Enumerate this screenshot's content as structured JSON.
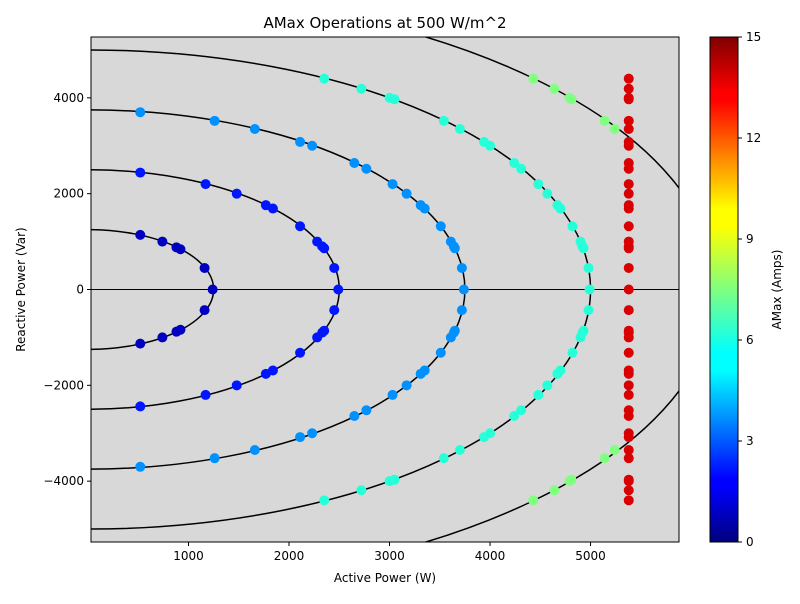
{
  "chart_data": {
    "type": "scatter",
    "title": "AMax Operations at 500 W/m^2",
    "xlabel": "Active Power (W)",
    "ylabel": "Reactive Power (Var)",
    "xlim": [
      30,
      5880
    ],
    "ylim": [
      -5270,
      5270
    ],
    "xticks": [
      1000,
      2000,
      3000,
      4000,
      5000
    ],
    "yticks": [
      -4000,
      -2000,
      0,
      2000,
      4000
    ],
    "xtick_labels": [
      "1000",
      "2000",
      "3000",
      "4000",
      "5000"
    ],
    "ytick_labels": [
      "−4000",
      "−2000",
      "0",
      "2000",
      "4000"
    ],
    "background": "#d8d8d8",
    "grid": false,
    "legend": "none",
    "colorbar": {
      "label": "AMax (Amps)",
      "min": 0,
      "max": 15,
      "ticks": [
        0,
        3,
        6,
        9,
        12,
        15
      ],
      "tick_labels": [
        "0",
        "3",
        "6",
        "9",
        "12",
        "15"
      ],
      "colormap": "jet"
    },
    "circles": [
      {
        "radius": 1250
      },
      {
        "radius": 2500
      },
      {
        "radius": 3750
      },
      {
        "radius": 5000
      },
      {
        "radius": 6250
      }
    ],
    "hline": 0,
    "vertical_line_x": 5380,
    "vertical_line_color": 13.7,
    "points": [
      {
        "x": 520,
        "y": 1140,
        "c": 1.0
      },
      {
        "x": 520,
        "y": -1130,
        "c": 1.0
      },
      {
        "x": 740,
        "y": 1000,
        "c": 1.0
      },
      {
        "x": 740,
        "y": -1000,
        "c": 1.0
      },
      {
        "x": 880,
        "y": 880,
        "c": 1.0
      },
      {
        "x": 880,
        "y": -880,
        "c": 1.0
      },
      {
        "x": 920,
        "y": 840,
        "c": 1.0
      },
      {
        "x": 920,
        "y": -840,
        "c": 1.0
      },
      {
        "x": 1160,
        "y": 450,
        "c": 1.0
      },
      {
        "x": 1160,
        "y": -430,
        "c": 1.0
      },
      {
        "x": 1240,
        "y": 0,
        "c": 1.0
      },
      {
        "x": 520,
        "y": 2440,
        "c": 2.2
      },
      {
        "x": 520,
        "y": -2440,
        "c": 2.2
      },
      {
        "x": 1170,
        "y": 2200,
        "c": 2.2
      },
      {
        "x": 1170,
        "y": -2200,
        "c": 2.2
      },
      {
        "x": 1480,
        "y": 2000,
        "c": 2.2
      },
      {
        "x": 1480,
        "y": -2000,
        "c": 2.2
      },
      {
        "x": 1770,
        "y": 1760,
        "c": 2.2
      },
      {
        "x": 1770,
        "y": -1760,
        "c": 2.2
      },
      {
        "x": 1840,
        "y": 1690,
        "c": 2.2
      },
      {
        "x": 1840,
        "y": -1690,
        "c": 2.2
      },
      {
        "x": 2110,
        "y": 1320,
        "c": 2.2
      },
      {
        "x": 2110,
        "y": -1320,
        "c": 2.2
      },
      {
        "x": 2280,
        "y": 1000,
        "c": 2.2
      },
      {
        "x": 2280,
        "y": -1000,
        "c": 2.2
      },
      {
        "x": 2330,
        "y": 900,
        "c": 2.2
      },
      {
        "x": 2330,
        "y": -900,
        "c": 2.2
      },
      {
        "x": 2350,
        "y": 860,
        "c": 2.2
      },
      {
        "x": 2350,
        "y": -860,
        "c": 2.2
      },
      {
        "x": 2450,
        "y": 450,
        "c": 2.2
      },
      {
        "x": 2450,
        "y": -430,
        "c": 2.2
      },
      {
        "x": 2490,
        "y": 0,
        "c": 2.2
      },
      {
        "x": 520,
        "y": 3700,
        "c": 4.0
      },
      {
        "x": 520,
        "y": -3700,
        "c": 4.0
      },
      {
        "x": 1260,
        "y": 3520,
        "c": 4.0
      },
      {
        "x": 1260,
        "y": -3520,
        "c": 4.0
      },
      {
        "x": 1660,
        "y": 3350,
        "c": 4.0
      },
      {
        "x": 1660,
        "y": -3350,
        "c": 4.0
      },
      {
        "x": 2110,
        "y": 3080,
        "c": 4.0
      },
      {
        "x": 2110,
        "y": -3080,
        "c": 4.0
      },
      {
        "x": 2230,
        "y": 3000,
        "c": 4.0
      },
      {
        "x": 2230,
        "y": -3000,
        "c": 4.0
      },
      {
        "x": 2650,
        "y": 2640,
        "c": 4.0
      },
      {
        "x": 2650,
        "y": -2640,
        "c": 4.0
      },
      {
        "x": 2770,
        "y": 2520,
        "c": 4.0
      },
      {
        "x": 2770,
        "y": -2520,
        "c": 4.0
      },
      {
        "x": 3030,
        "y": 2200,
        "c": 4.0
      },
      {
        "x": 3030,
        "y": -2200,
        "c": 4.0
      },
      {
        "x": 3170,
        "y": 2000,
        "c": 4.0
      },
      {
        "x": 3170,
        "y": -2000,
        "c": 4.0
      },
      {
        "x": 3310,
        "y": 1760,
        "c": 4.0
      },
      {
        "x": 3310,
        "y": -1760,
        "c": 4.0
      },
      {
        "x": 3350,
        "y": 1690,
        "c": 4.0
      },
      {
        "x": 3350,
        "y": -1690,
        "c": 4.0
      },
      {
        "x": 3510,
        "y": 1320,
        "c": 4.0
      },
      {
        "x": 3510,
        "y": -1320,
        "c": 4.0
      },
      {
        "x": 3610,
        "y": 1000,
        "c": 4.0
      },
      {
        "x": 3610,
        "y": -1000,
        "c": 4.0
      },
      {
        "x": 3640,
        "y": 900,
        "c": 4.0
      },
      {
        "x": 3640,
        "y": -900,
        "c": 4.0
      },
      {
        "x": 3650,
        "y": 860,
        "c": 4.0
      },
      {
        "x": 3650,
        "y": -860,
        "c": 4.0
      },
      {
        "x": 3720,
        "y": 450,
        "c": 4.0
      },
      {
        "x": 3720,
        "y": -430,
        "c": 4.0
      },
      {
        "x": 3740,
        "y": 0,
        "c": 4.0
      },
      {
        "x": 2350,
        "y": 4400,
        "c": 6.2
      },
      {
        "x": 2350,
        "y": -4400,
        "c": 6.2
      },
      {
        "x": 2720,
        "y": 4190,
        "c": 6.2
      },
      {
        "x": 2720,
        "y": -4190,
        "c": 6.2
      },
      {
        "x": 3000,
        "y": 4000,
        "c": 6.2
      },
      {
        "x": 3000,
        "y": -4000,
        "c": 6.2
      },
      {
        "x": 3050,
        "y": 3970,
        "c": 6.2
      },
      {
        "x": 3050,
        "y": -3970,
        "c": 6.2
      },
      {
        "x": 3540,
        "y": 3520,
        "c": 6.2
      },
      {
        "x": 3540,
        "y": -3520,
        "c": 6.2
      },
      {
        "x": 3700,
        "y": 3350,
        "c": 6.2
      },
      {
        "x": 3700,
        "y": -3350,
        "c": 6.2
      },
      {
        "x": 3940,
        "y": 3080,
        "c": 6.2
      },
      {
        "x": 3940,
        "y": -3080,
        "c": 6.2
      },
      {
        "x": 4000,
        "y": 3000,
        "c": 6.2
      },
      {
        "x": 4000,
        "y": -3000,
        "c": 6.2
      },
      {
        "x": 4240,
        "y": 2640,
        "c": 6.2
      },
      {
        "x": 4240,
        "y": -2640,
        "c": 6.2
      },
      {
        "x": 4310,
        "y": 2520,
        "c": 6.2
      },
      {
        "x": 4310,
        "y": -2520,
        "c": 6.2
      },
      {
        "x": 4480,
        "y": 2200,
        "c": 6.2
      },
      {
        "x": 4480,
        "y": -2200,
        "c": 6.2
      },
      {
        "x": 4570,
        "y": 2000,
        "c": 6.2
      },
      {
        "x": 4570,
        "y": -2000,
        "c": 6.2
      },
      {
        "x": 4670,
        "y": 1760,
        "c": 6.2
      },
      {
        "x": 4670,
        "y": -1760,
        "c": 6.2
      },
      {
        "x": 4700,
        "y": 1690,
        "c": 6.2
      },
      {
        "x": 4700,
        "y": -1690,
        "c": 6.2
      },
      {
        "x": 4820,
        "y": 1320,
        "c": 6.2
      },
      {
        "x": 4820,
        "y": -1320,
        "c": 6.2
      },
      {
        "x": 4900,
        "y": 1000,
        "c": 6.2
      },
      {
        "x": 4900,
        "y": -1000,
        "c": 6.2
      },
      {
        "x": 4920,
        "y": 900,
        "c": 6.2
      },
      {
        "x": 4920,
        "y": -900,
        "c": 6.2
      },
      {
        "x": 4930,
        "y": 860,
        "c": 6.2
      },
      {
        "x": 4930,
        "y": -860,
        "c": 6.2
      },
      {
        "x": 4980,
        "y": 450,
        "c": 6.2
      },
      {
        "x": 4980,
        "y": -430,
        "c": 6.2
      },
      {
        "x": 4990,
        "y": 0,
        "c": 6.2
      },
      {
        "x": 4430,
        "y": 4400,
        "c": 7.5
      },
      {
        "x": 4430,
        "y": -4400,
        "c": 7.5
      },
      {
        "x": 4640,
        "y": 4190,
        "c": 7.5
      },
      {
        "x": 4640,
        "y": -4190,
        "c": 7.5
      },
      {
        "x": 4790,
        "y": 4000,
        "c": 7.5
      },
      {
        "x": 4790,
        "y": -4000,
        "c": 7.5
      },
      {
        "x": 4810,
        "y": 3970,
        "c": 7.5
      },
      {
        "x": 4810,
        "y": -3970,
        "c": 7.5
      },
      {
        "x": 5140,
        "y": 3520,
        "c": 7.5
      },
      {
        "x": 5140,
        "y": -3520,
        "c": 7.5
      },
      {
        "x": 5240,
        "y": 3350,
        "c": 7.5
      },
      {
        "x": 5240,
        "y": -3350,
        "c": 7.5
      }
    ],
    "vertical_line_y": [
      4400,
      4190,
      4000,
      3970,
      3520,
      3350,
      3080,
      3000,
      2640,
      2520,
      2200,
      2000,
      1760,
      1690,
      1320,
      1000,
      900,
      860,
      450,
      0,
      -430,
      -860,
      -900,
      -1000,
      -1320,
      -1690,
      -1760,
      -2000,
      -2200,
      -2520,
      -2640,
      -3000,
      -3080,
      -3350,
      -3520,
      -3970,
      -4000,
      -4190,
      -4400
    ]
  }
}
